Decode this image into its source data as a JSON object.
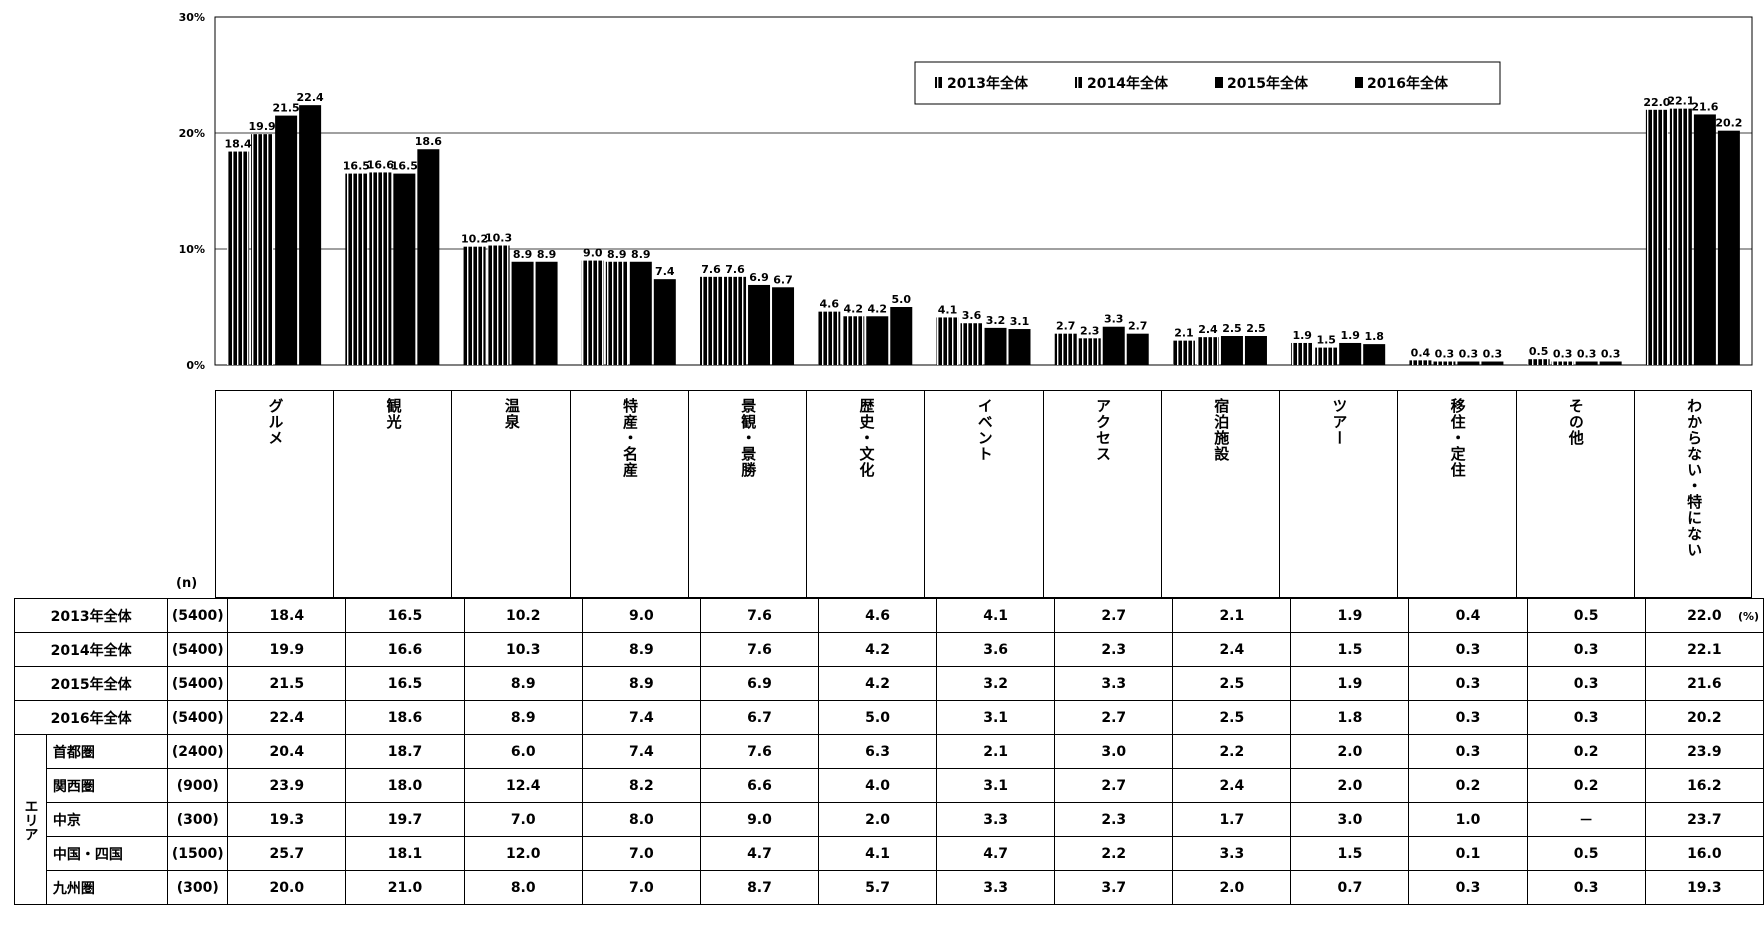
{
  "chart_data": {
    "type": "bar",
    "y_ticks": [
      "30%",
      "20%",
      "10%",
      "0%"
    ],
    "ylim": [
      0,
      30
    ],
    "legend_position": "top-right",
    "grid": true,
    "categories": [
      "グルメ",
      "観光",
      "温泉",
      "特産・名産",
      "景観・景勝",
      "歴史・文化",
      "イベント",
      "アクセス",
      "宿泊施設",
      "ツアー",
      "移住・定住",
      "その他",
      "わからない・特にない"
    ],
    "series": [
      {
        "name": "2013年全体",
        "color": "#000000",
        "pattern": "stripe",
        "values": [
          18.4,
          16.5,
          10.2,
          9.0,
          7.6,
          4.6,
          4.1,
          2.7,
          2.1,
          1.9,
          0.4,
          0.5,
          22.0
        ]
      },
      {
        "name": "2014年全体",
        "color": "#000000",
        "pattern": "stripe",
        "values": [
          19.9,
          16.6,
          10.3,
          8.9,
          7.6,
          4.2,
          3.6,
          2.3,
          2.4,
          1.5,
          0.3,
          0.3,
          22.1
        ]
      },
      {
        "name": "2015年全体",
        "color": "#000000",
        "pattern": "solid",
        "values": [
          21.5,
          16.5,
          8.9,
          8.9,
          6.9,
          4.2,
          3.2,
          3.3,
          2.5,
          1.9,
          0.3,
          0.3,
          21.6
        ]
      },
      {
        "name": "2016年全体",
        "color": "#000000",
        "pattern": "solid",
        "values": [
          22.4,
          18.6,
          8.9,
          7.4,
          6.7,
          5.0,
          3.1,
          2.7,
          2.5,
          1.8,
          0.3,
          0.3,
          20.2
        ]
      }
    ],
    "data_label_rows": [
      [
        "18.4",
        "19.9",
        "21.5",
        "22.4"
      ],
      [
        "16.5",
        "16.6",
        "16.5",
        "18.6"
      ],
      [
        "10.2",
        "10.3",
        "8.9",
        "8.9"
      ],
      [
        "9.0",
        "8.9",
        "8.9",
        "7.4"
      ],
      [
        "7.6",
        "7.6",
        "6.9",
        "6.7"
      ],
      [
        "4.6",
        "4.2",
        "4.2",
        "5.0"
      ],
      [
        "4.1",
        "3.6",
        "3.2",
        "3.1"
      ],
      [
        "2.7",
        "2.3",
        "3.3",
        "2.7"
      ],
      [
        "2.1",
        "2.4",
        "2.5",
        "2.5"
      ],
      [
        "1.9",
        "1.5",
        "1.9",
        "1.8"
      ],
      [
        "0.4",
        "0.3",
        "0.3",
        "0.3"
      ],
      [
        "0.5",
        "0.3",
        "0.3",
        "0.3"
      ],
      [
        "22.0",
        "22.1",
        "21.6",
        "20.2"
      ]
    ]
  },
  "table": {
    "n_header": "(n)",
    "unit": "(%)",
    "area_label": "エリア",
    "rows": [
      {
        "label": "2013年全体",
        "n": "(5400)",
        "values": [
          "18.4",
          "16.5",
          "10.2",
          "9.0",
          "7.6",
          "4.6",
          "4.1",
          "2.7",
          "2.1",
          "1.9",
          "0.4",
          "0.5",
          "22.0"
        ]
      },
      {
        "label": "2014年全体",
        "n": "(5400)",
        "values": [
          "19.9",
          "16.6",
          "10.3",
          "8.9",
          "7.6",
          "4.2",
          "3.6",
          "2.3",
          "2.4",
          "1.5",
          "0.3",
          "0.3",
          "22.1"
        ]
      },
      {
        "label": "2015年全体",
        "n": "(5400)",
        "values": [
          "21.5",
          "16.5",
          "8.9",
          "8.9",
          "6.9",
          "4.2",
          "3.2",
          "3.3",
          "2.5",
          "1.9",
          "0.3",
          "0.3",
          "21.6"
        ]
      },
      {
        "label": "2016年全体",
        "n": "(5400)",
        "values": [
          "22.4",
          "18.6",
          "8.9",
          "7.4",
          "6.7",
          "5.0",
          "3.1",
          "2.7",
          "2.5",
          "1.8",
          "0.3",
          "0.3",
          "20.2"
        ]
      },
      {
        "label": "首都圏",
        "n": "(2400)",
        "values": [
          "20.4",
          "18.7",
          "6.0",
          "7.4",
          "7.6",
          "6.3",
          "2.1",
          "3.0",
          "2.2",
          "2.0",
          "0.3",
          "0.2",
          "23.9"
        ]
      },
      {
        "label": "関西圏",
        "n": "(900)",
        "values": [
          "23.9",
          "18.0",
          "12.4",
          "8.2",
          "6.6",
          "4.0",
          "3.1",
          "2.7",
          "2.4",
          "2.0",
          "0.2",
          "0.2",
          "16.2"
        ]
      },
      {
        "label": "中京",
        "n": "(300)",
        "values": [
          "19.3",
          "19.7",
          "7.0",
          "8.0",
          "9.0",
          "2.0",
          "3.3",
          "2.3",
          "1.7",
          "3.0",
          "1.0",
          "－",
          "23.7"
        ]
      },
      {
        "label": "中国・四国",
        "n": "(1500)",
        "values": [
          "25.7",
          "18.1",
          "12.0",
          "7.0",
          "4.7",
          "4.1",
          "4.7",
          "2.2",
          "3.3",
          "1.5",
          "0.1",
          "0.5",
          "16.0"
        ]
      },
      {
        "label": "九州圏",
        "n": "(300)",
        "values": [
          "20.0",
          "21.0",
          "8.0",
          "7.0",
          "8.7",
          "5.7",
          "3.3",
          "3.7",
          "2.0",
          "0.7",
          "0.3",
          "0.3",
          "19.3"
        ]
      }
    ]
  }
}
